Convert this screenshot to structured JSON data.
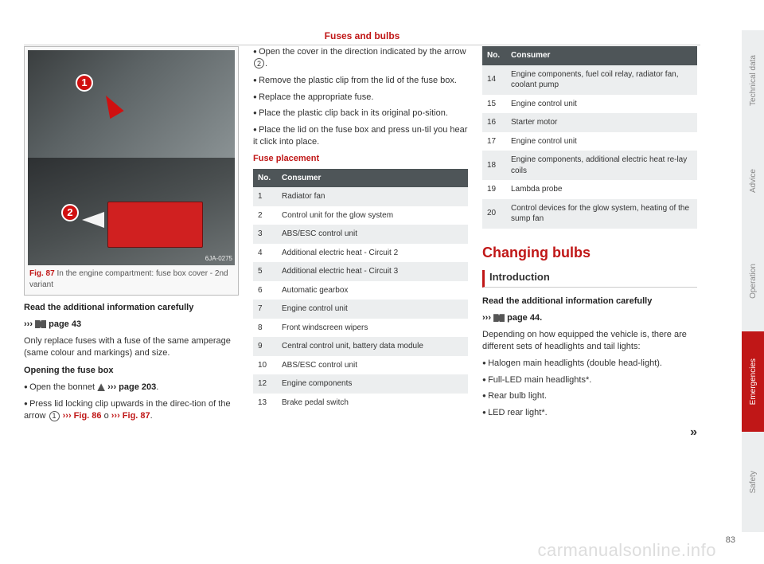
{
  "header": {
    "title": "Fuses and bulbs"
  },
  "figure": {
    "label": "Fig. 87",
    "caption_rest": "In the engine compartment: fuse box cover - 2nd variant",
    "image_id": "6JA-0275",
    "marker1": "1",
    "marker2": "2"
  },
  "col1": {
    "read_line1": "Read the additional information carefully",
    "read_link": "page 43",
    "para1": "Only replace fuses with a fuse of the same amperage (same colour and markings) and size.",
    "open_head": "Opening the fuse box",
    "b1_pre": "Open the bonnet ",
    "b1_link": "››› page 203",
    "b2_pre": "Press lid locking clip upwards in the direc-tion of the arrow ",
    "b2_fig1": "››› Fig. 86",
    "b2_mid": " o ",
    "b2_fig2": "››› Fig. 87",
    "arrows": "››› "
  },
  "col2": {
    "b1": "Open the cover in the direction indicated by the arrow ",
    "b2": "Remove the plastic clip from the lid of the fuse box.",
    "b3": "Replace the appropriate fuse.",
    "b4": "Place the plastic clip back in its original po-sition.",
    "b5": "Place the lid on the fuse box and press un-til you hear it click into place.",
    "fuse_head": "Fuse placement",
    "th_no": "No.",
    "th_cons": "Consumer",
    "circle2": "2"
  },
  "fuse_rows_a": [
    {
      "no": "1",
      "c": "Radiator fan"
    },
    {
      "no": "2",
      "c": "Control unit for the glow system"
    },
    {
      "no": "3",
      "c": "ABS/ESC control unit"
    },
    {
      "no": "4",
      "c": "Additional electric heat - Circuit 2"
    },
    {
      "no": "5",
      "c": "Additional electric heat - Circuit 3"
    },
    {
      "no": "6",
      "c": "Automatic gearbox"
    },
    {
      "no": "7",
      "c": "Engine control unit"
    },
    {
      "no": "8",
      "c": "Front windscreen wipers"
    },
    {
      "no": "9",
      "c": "Central control unit, battery data module"
    },
    {
      "no": "10",
      "c": "ABS/ESC control unit"
    },
    {
      "no": "12",
      "c": "Engine components"
    },
    {
      "no": "13",
      "c": "Brake pedal switch"
    }
  ],
  "fuse_rows_b": [
    {
      "no": "14",
      "c": "Engine components, fuel coil relay, radiator fan, coolant pump"
    },
    {
      "no": "15",
      "c": "Engine control unit"
    },
    {
      "no": "16",
      "c": "Starter motor"
    },
    {
      "no": "17",
      "c": "Engine control unit"
    },
    {
      "no": "18",
      "c": "Engine components, additional electric heat re-lay coils"
    },
    {
      "no": "19",
      "c": "Lambda probe"
    },
    {
      "no": "20",
      "c": "Control devices for the glow system, heating of the sump fan"
    }
  ],
  "col3": {
    "section": "Changing bulbs",
    "intro": "Introduction",
    "read1": "Read the additional information carefully",
    "read_link": "page 44",
    "para": "Depending on how equipped the vehicle is, there are different sets of headlights and tail lights:",
    "l1": "Halogen main headlights (double head-light).",
    "l2": "Full-LED main headlights*.",
    "l3": "Rear bulb light.",
    "l4": "LED rear light*.",
    "cont": "»",
    "arrows": "››› "
  },
  "tabs": [
    {
      "t": "Technical data"
    },
    {
      "t": "Advice"
    },
    {
      "t": "Operation"
    },
    {
      "t": "Emergencies"
    },
    {
      "t": "Safety"
    }
  ],
  "page_number": "83",
  "watermark": "carmanualsonline.info",
  "circle1": "1",
  "period": "."
}
